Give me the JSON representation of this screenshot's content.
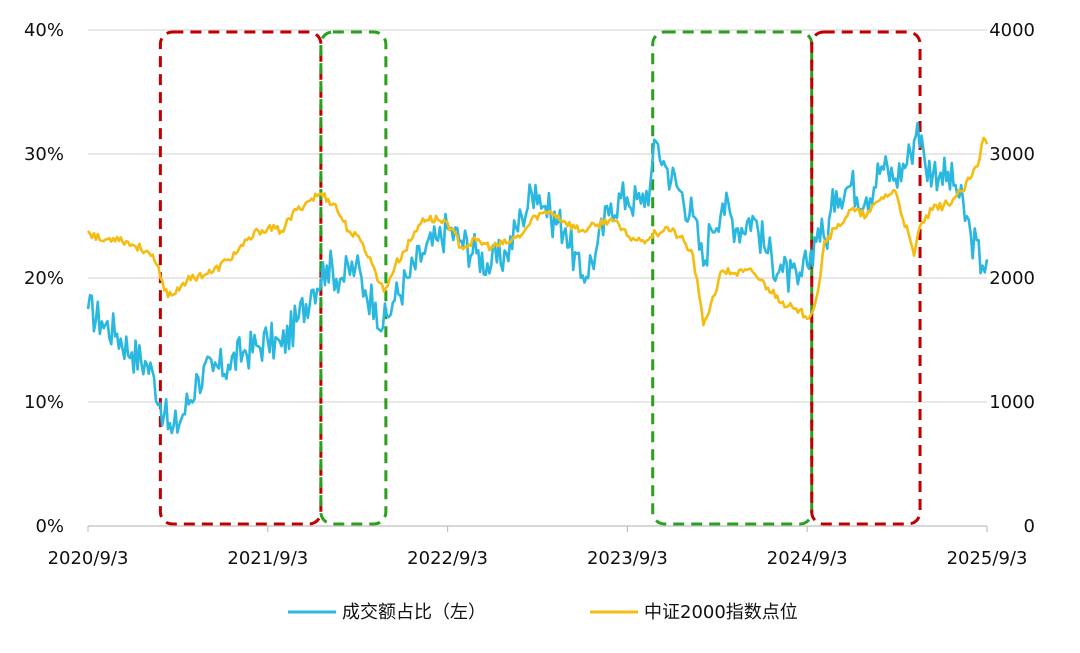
{
  "chart_data": {
    "type": "line",
    "title": "",
    "x_ticks": [
      "2020/9/3",
      "2021/9/3",
      "2022/9/3",
      "2023/9/3",
      "2024/9/3",
      "2025/9/3"
    ],
    "x_range": [
      "2020-09-03",
      "2025-09-03"
    ],
    "y_left": {
      "range": [
        0,
        40
      ],
      "ticks": [
        "0%",
        "10%",
        "20%",
        "30%",
        "40%"
      ],
      "unit": "%"
    },
    "y_right": {
      "range": [
        0,
        4000
      ],
      "ticks": [
        "0",
        "1000",
        "2000",
        "3000",
        "4000"
      ]
    },
    "grid": "horizontal",
    "legend_position": "bottom",
    "series": [
      {
        "name": "成交额占比（左）",
        "axis": "left",
        "color": "#2BB8E0",
        "points": [
          [
            "2020-09-03",
            17.5
          ],
          [
            "2020-10-01",
            16.5
          ],
          [
            "2020-11-01",
            15.5
          ],
          [
            "2020-12-01",
            14.0
          ],
          [
            "2021-01-01",
            13.0
          ],
          [
            "2021-01-15",
            12.0
          ],
          [
            "2021-02-05",
            9.0
          ],
          [
            "2021-02-20",
            7.5
          ],
          [
            "2021-03-15",
            9.0
          ],
          [
            "2021-04-15",
            12.0
          ],
          [
            "2021-05-15",
            12.5
          ],
          [
            "2021-06-15",
            13.0
          ],
          [
            "2021-07-15",
            14.0
          ],
          [
            "2021-08-15",
            14.5
          ],
          [
            "2021-09-03",
            15.0
          ],
          [
            "2021-10-01",
            14.5
          ],
          [
            "2021-11-01",
            16.5
          ],
          [
            "2021-12-01",
            19.0
          ],
          [
            "2022-01-01",
            21.0
          ],
          [
            "2022-02-01",
            20.0
          ],
          [
            "2022-03-01",
            21.0
          ],
          [
            "2022-03-20",
            19.0
          ],
          [
            "2022-04-10",
            18.0
          ],
          [
            "2022-04-25",
            16.0
          ],
          [
            "2022-05-15",
            18.0
          ],
          [
            "2022-06-15",
            20.0
          ],
          [
            "2022-07-15",
            22.0
          ],
          [
            "2022-08-15",
            23.0
          ],
          [
            "2022-09-03",
            24.0
          ],
          [
            "2022-10-01",
            23.0
          ],
          [
            "2022-11-01",
            22.0
          ],
          [
            "2022-12-01",
            21.0
          ],
          [
            "2023-01-01",
            22.0
          ],
          [
            "2023-02-01",
            25.0
          ],
          [
            "2023-03-01",
            27.5
          ],
          [
            "2023-04-01",
            25.0
          ],
          [
            "2023-05-01",
            24.0
          ],
          [
            "2023-06-01",
            20.0
          ],
          [
            "2023-07-01",
            22.0
          ],
          [
            "2023-08-01",
            26.0
          ],
          [
            "2023-09-03",
            26.5
          ],
          [
            "2023-10-01",
            26.0
          ],
          [
            "2023-10-20",
            27.5
          ],
          [
            "2023-11-01",
            31.0
          ],
          [
            "2023-11-20",
            29.0
          ],
          [
            "2023-12-20",
            27.0
          ],
          [
            "2024-01-15",
            25.0
          ],
          [
            "2024-02-05",
            21.0
          ],
          [
            "2024-02-20",
            24.0
          ],
          [
            "2024-03-15",
            26.0
          ],
          [
            "2024-04-15",
            24.0
          ],
          [
            "2024-05-15",
            25.0
          ],
          [
            "2024-06-15",
            22.0
          ],
          [
            "2024-07-15",
            20.5
          ],
          [
            "2024-08-15",
            19.5
          ],
          [
            "2024-09-03",
            21.0
          ],
          [
            "2024-09-25",
            24.0
          ],
          [
            "2024-10-10",
            23.0
          ],
          [
            "2024-11-01",
            27.0
          ],
          [
            "2024-12-01",
            27.5
          ],
          [
            "2025-01-01",
            26.5
          ],
          [
            "2025-02-01",
            29.0
          ],
          [
            "2025-03-01",
            28.0
          ],
          [
            "2025-04-01",
            30.0
          ],
          [
            "2025-04-15",
            32.5
          ],
          [
            "2025-05-01",
            29.0
          ],
          [
            "2025-06-01",
            28.5
          ],
          [
            "2025-07-01",
            27.5
          ],
          [
            "2025-08-01",
            23.5
          ],
          [
            "2025-08-25",
            21.0
          ],
          [
            "2025-09-03",
            21.5
          ]
        ]
      },
      {
        "name": "中证2000指数点位",
        "axis": "right",
        "color": "#F5BC12",
        "points": [
          [
            "2020-09-03",
            2380
          ],
          [
            "2020-10-01",
            2300
          ],
          [
            "2020-11-01",
            2330
          ],
          [
            "2020-12-01",
            2270
          ],
          [
            "2021-01-01",
            2220
          ],
          [
            "2021-01-20",
            2110
          ],
          [
            "2021-02-05",
            1900
          ],
          [
            "2021-02-20",
            1860
          ],
          [
            "2021-03-15",
            1960
          ],
          [
            "2021-04-15",
            2020
          ],
          [
            "2021-05-15",
            2050
          ],
          [
            "2021-06-15",
            2150
          ],
          [
            "2021-07-15",
            2260
          ],
          [
            "2021-08-15",
            2380
          ],
          [
            "2021-09-03",
            2400
          ],
          [
            "2021-10-01",
            2380
          ],
          [
            "2021-11-01",
            2550
          ],
          [
            "2021-12-01",
            2640
          ],
          [
            "2021-12-20",
            2680
          ],
          [
            "2022-01-15",
            2600
          ],
          [
            "2022-02-15",
            2380
          ],
          [
            "2022-03-15",
            2280
          ],
          [
            "2022-04-10",
            2050
          ],
          [
            "2022-04-27",
            1890
          ],
          [
            "2022-05-20",
            2100
          ],
          [
            "2022-06-20",
            2300
          ],
          [
            "2022-07-15",
            2480
          ],
          [
            "2022-08-15",
            2470
          ],
          [
            "2022-09-03",
            2450
          ],
          [
            "2022-10-01",
            2250
          ],
          [
            "2022-11-01",
            2300
          ],
          [
            "2022-12-01",
            2250
          ],
          [
            "2023-01-01",
            2280
          ],
          [
            "2023-02-01",
            2350
          ],
          [
            "2023-03-01",
            2500
          ],
          [
            "2023-04-01",
            2540
          ],
          [
            "2023-05-01",
            2450
          ],
          [
            "2023-06-01",
            2380
          ],
          [
            "2023-07-01",
            2420
          ],
          [
            "2023-08-01",
            2480
          ],
          [
            "2023-09-03",
            2340
          ],
          [
            "2023-10-01",
            2300
          ],
          [
            "2023-11-01",
            2360
          ],
          [
            "2023-11-20",
            2410
          ],
          [
            "2023-12-20",
            2330
          ],
          [
            "2024-01-15",
            2180
          ],
          [
            "2024-02-05",
            1620
          ],
          [
            "2024-02-20",
            1790
          ],
          [
            "2024-03-15",
            2060
          ],
          [
            "2024-04-10",
            2040
          ],
          [
            "2024-05-15",
            2050
          ],
          [
            "2024-06-15",
            1920
          ],
          [
            "2024-07-15",
            1810
          ],
          [
            "2024-08-15",
            1720
          ],
          [
            "2024-09-10",
            1700
          ],
          [
            "2024-09-25",
            1900
          ],
          [
            "2024-10-08",
            2300
          ],
          [
            "2024-11-01",
            2400
          ],
          [
            "2024-12-01",
            2550
          ],
          [
            "2025-01-01",
            2500
          ],
          [
            "2025-02-01",
            2650
          ],
          [
            "2025-03-01",
            2700
          ],
          [
            "2025-04-08",
            2180
          ],
          [
            "2025-04-20",
            2420
          ],
          [
            "2025-05-15",
            2550
          ],
          [
            "2025-06-15",
            2600
          ],
          [
            "2025-07-15",
            2700
          ],
          [
            "2025-08-15",
            2900
          ],
          [
            "2025-08-27",
            3130
          ],
          [
            "2025-09-03",
            3080
          ]
        ]
      }
    ],
    "highlight_regions": [
      {
        "from": "2021-01-28",
        "to": "2021-12-20",
        "color": "#C00000"
      },
      {
        "from": "2021-12-20",
        "to": "2022-05-01",
        "color": "#2AA01E"
      },
      {
        "from": "2023-10-25",
        "to": "2024-09-12",
        "color": "#2AA01E"
      },
      {
        "from": "2024-09-12",
        "to": "2025-04-20",
        "color": "#C00000"
      }
    ]
  }
}
